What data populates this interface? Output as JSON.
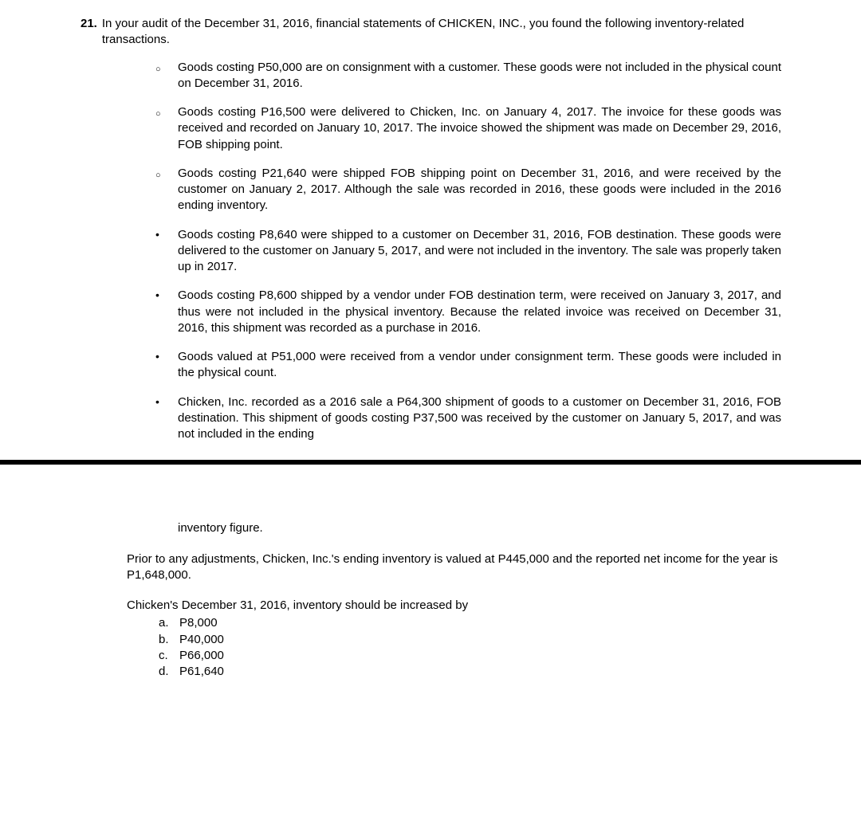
{
  "question_number": "21.",
  "intro": "In your audit of the December 31, 2016, financial statements of CHICKEN, INC., you found the following inventory-related transactions.",
  "bullets": [
    {
      "marker": "circle",
      "text": "Goods costing P50,000 are on consignment with a customer. These goods were not included in the physical count on December 31, 2016."
    },
    {
      "marker": "circle",
      "text": "Goods costing P16,500 were delivered to Chicken, Inc. on January 4, 2017. The invoice for these goods was received and recorded on January 10, 2017. The invoice showed the shipment was made on December 29, 2016, FOB shipping point."
    },
    {
      "marker": "circle",
      "text": "Goods costing P21,640 were shipped FOB shipping point on December 31, 2016, and were received by the customer on January 2, 2017. Although the sale was recorded in 2016, these goods were included in the 2016 ending inventory."
    },
    {
      "marker": "dot",
      "text": "Goods costing P8,640 were shipped to a customer on December 31, 2016, FOB destination. These goods were delivered to the customer on January 5, 2017, and were not included in the inventory. The sale was properly taken up in 2017."
    },
    {
      "marker": "dot",
      "text": "Goods costing P8,600 shipped by a vendor under FOB destination term, were received on January 3, 2017, and thus were not included in the physical inventory. Because the related invoice was received on December 31, 2016, this shipment was recorded as a purchase in 2016."
    },
    {
      "marker": "dot",
      "text": "Goods valued at P51,000 were received from a vendor under consignment term. These goods were included in the physical count."
    },
    {
      "marker": "dot",
      "text": "Chicken, Inc. recorded as a 2016 sale a P64,300 shipment of goods to a customer on December 31, 2016, FOB destination. This shipment of goods costing P37,500 was received by the customer on January 5, 2017, and was not included in the ending"
    }
  ],
  "continuation": "inventory figure.",
  "closing": "Prior to any adjustments, Chicken, Inc.'s ending inventory is valued at P445,000 and the reported net income for the year is P1,648,000.",
  "question": "Chicken's December 31, 2016, inventory should be increased by",
  "choices": [
    {
      "letter": "a.",
      "text": "P8,000"
    },
    {
      "letter": "b.",
      "text": "P40,000"
    },
    {
      "letter": "c.",
      "text": "P66,000"
    },
    {
      "letter": "d.",
      "text": "P61,640"
    }
  ]
}
